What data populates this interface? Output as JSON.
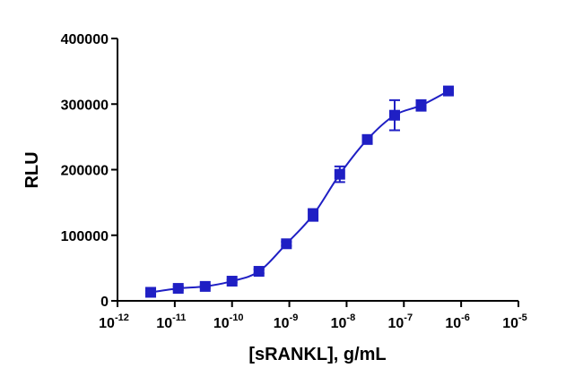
{
  "chart_data": {
    "type": "scatter",
    "x_label": "[sRANKL], g/mL",
    "y_label": "RLU",
    "log_x": true,
    "fit_line": true,
    "x": [
      3.8e-12,
      1.15e-11,
      3.4e-11,
      1e-10,
      2.95e-10,
      8.9e-10,
      2.6e-09,
      7.6e-09,
      2.3e-08,
      6.9e-08,
      2e-07,
      6e-07
    ],
    "series": [
      {
        "color": "#1f1fc4",
        "values": [
          13000,
          19000,
          22000,
          30000,
          45000,
          87000,
          131000,
          193000,
          246000,
          283000,
          298000,
          320000
        ],
        "errors": [
          2000,
          3000,
          2000,
          2000,
          3000,
          3000,
          9000,
          12000,
          6000,
          23000,
          8000,
          3000
        ]
      }
    ],
    "xlim": [
      1e-12,
      1e-05
    ],
    "xticks": [
      {
        "value": 1e-12,
        "label": "10",
        "exponent": "-12"
      },
      {
        "value": 1e-11,
        "label": "10",
        "exponent": "-11"
      },
      {
        "value": 1e-10,
        "label": "10",
        "exponent": "-10"
      },
      {
        "value": 1e-09,
        "label": "10",
        "exponent": "-9"
      },
      {
        "value": 1e-08,
        "label": "10",
        "exponent": "-8"
      },
      {
        "value": 1e-07,
        "label": "10",
        "exponent": "-7"
      },
      {
        "value": 1e-06,
        "label": "10",
        "exponent": "-6"
      },
      {
        "value": 1e-05,
        "label": "10",
        "exponent": "-5"
      }
    ],
    "ylim": [
      0,
      400000
    ],
    "yticks": [
      0,
      100000,
      200000,
      300000,
      400000
    ]
  }
}
